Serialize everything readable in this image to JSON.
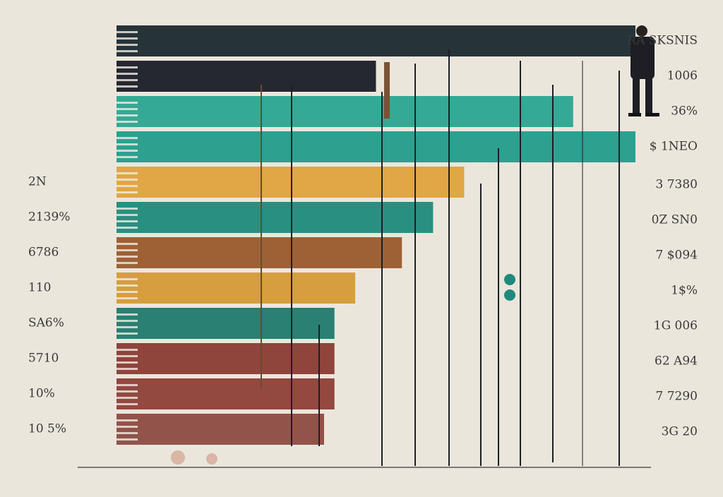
{
  "chart_data": {
    "type": "hbar",
    "categories": [
      null,
      null,
      null,
      null,
      "2N",
      "2139%",
      "6786",
      "110",
      "SA6%",
      "5710",
      "10%",
      "10 5%"
    ],
    "values": [
      100,
      50,
      88,
      100,
      67,
      61,
      55,
      46,
      42,
      42,
      42,
      40
    ],
    "colors": [
      "#1b2a30",
      "#1a1d27",
      "#2aa590",
      "#239c8b",
      "#e0a23c",
      "#1f8a7b",
      "#9a5a2c",
      "#d59a36",
      "#1f7a6d",
      "#8a3b33",
      "#8e3f37",
      "#8d4b41"
    ],
    "annotations": [
      "RA SKSNIS",
      "1006",
      "36%",
      "$ 1NEO",
      "3 7380",
      "0Z SN0",
      "7 $094",
      "1$%",
      "1G 006",
      "62 A94",
      "7 7290",
      "3G 20"
    ],
    "xlim": [
      0,
      100
    ]
  }
}
